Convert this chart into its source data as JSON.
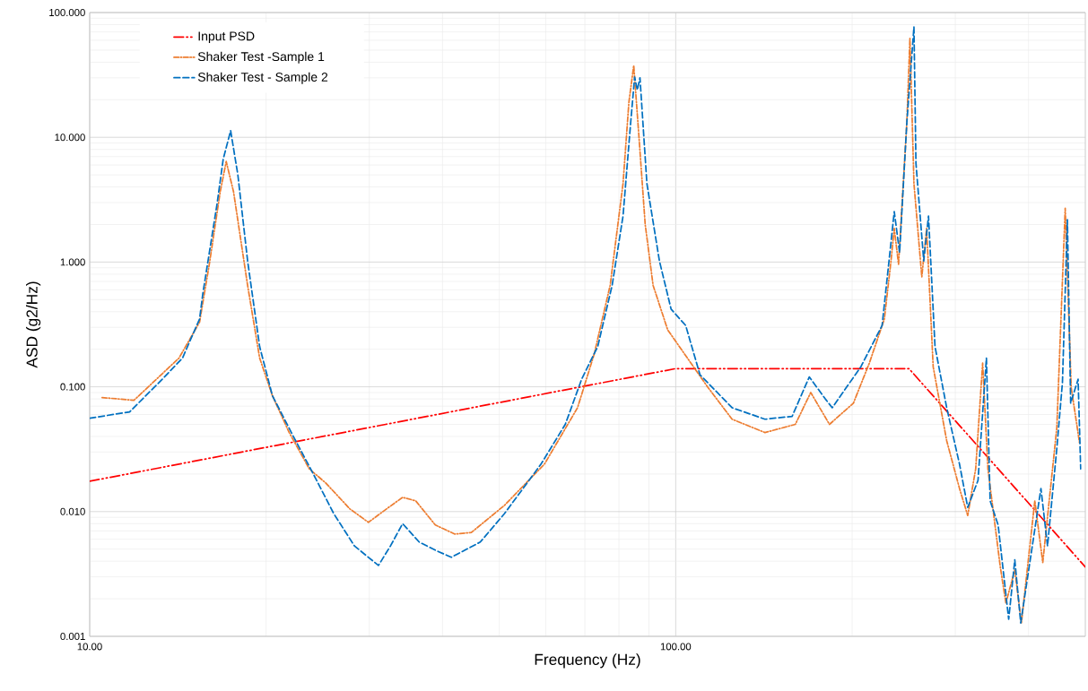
{
  "chart_data": {
    "type": "line",
    "xlabel": "Frequency (Hz)",
    "ylabel": "ASD  (g2/Hz)",
    "log": "xy",
    "grid": true,
    "legend": "top left",
    "marker": "none",
    "xlim": [
      10,
      500
    ],
    "ylim": [
      0.001,
      100
    ],
    "xticks": [
      {
        "value": 10,
        "label": "10.00"
      },
      {
        "value": 100,
        "label": "100.00"
      }
    ],
    "yticks": [
      {
        "value": 0.001,
        "label": "0.001"
      },
      {
        "value": 0.01,
        "label": "0.010"
      },
      {
        "value": 0.1,
        "label": "0.100"
      },
      {
        "value": 1,
        "label": "1.000"
      },
      {
        "value": 10,
        "label": "10.000"
      },
      {
        "value": 100,
        "label": "100.000"
      }
    ],
    "series": [
      {
        "name": "Input PSD",
        "color": "#ff0000",
        "line_style": "dashdotdotted",
        "x": [
          10,
          100,
          250,
          500
        ],
        "values": [
          0.0175,
          0.14,
          0.14,
          0.0036
        ]
      },
      {
        "name": "Shaker Test -Sample 1",
        "color": "#ed7d31",
        "line_style": "dashdotted",
        "x": [
          10.5,
          11.9,
          14.2,
          15.4,
          16.0,
          16.7,
          17.1,
          17.6,
          18.6,
          19.5,
          20.5,
          21.9,
          23.7,
          25.3,
          27.8,
          29.9,
          32.1,
          34.2,
          36.0,
          38.9,
          42,
          44.8,
          51,
          59.7,
          68,
          72.6,
          77.3,
          81.3,
          83.2,
          84.8,
          86.5,
          88.7,
          91.5,
          96.9,
          104.7,
          113.5,
          124.8,
          142,
          160,
          170,
          183,
          201,
          214,
          227,
          233,
          236,
          240,
          248,
          251,
          255,
          263,
          268,
          275,
          290,
          305,
          315,
          325,
          334,
          341,
          358,
          366,
          379,
          389,
          410,
          423,
          447,
          462,
          473,
          489
        ],
        "values": [
          0.082,
          0.078,
          0.17,
          0.33,
          0.96,
          3.66,
          6.4,
          3.66,
          0.65,
          0.17,
          0.085,
          0.043,
          0.022,
          0.0169,
          0.0105,
          0.0082,
          0.0105,
          0.013,
          0.0122,
          0.0078,
          0.0066,
          0.0068,
          0.0112,
          0.024,
          0.068,
          0.183,
          0.65,
          4.25,
          19.1,
          37.7,
          10.5,
          2.0,
          0.65,
          0.286,
          0.17,
          0.099,
          0.055,
          0.043,
          0.05,
          0.09,
          0.05,
          0.074,
          0.155,
          0.35,
          1.02,
          1.86,
          0.96,
          13.3,
          62,
          4.25,
          0.76,
          1.86,
          0.145,
          0.037,
          0.0153,
          0.0093,
          0.022,
          0.155,
          0.022,
          0.0036,
          0.00185,
          0.0034,
          0.00128,
          0.0122,
          0.0039,
          0.047,
          2.7,
          0.099,
          0.035
        ]
      },
      {
        "name": "Shaker Test - Sample 2",
        "color": "#0070c0",
        "line_style": "dashed",
        "x": [
          10,
          11.7,
          13.3,
          14.4,
          15.4,
          15.6,
          16.5,
          16.9,
          17.4,
          17.9,
          18.6,
          19.5,
          20.5,
          22.2,
          24.0,
          26.1,
          28.3,
          31.1,
          32.6,
          34.2,
          36.5,
          38.9,
          41.4,
          46.4,
          51,
          58.9,
          64.8,
          69.1,
          73.6,
          77.9,
          81.3,
          83.8,
          85.1,
          86.0,
          86.9,
          89.3,
          93.8,
          98.2,
          104,
          110,
          124.8,
          142,
          158,
          169,
          180,
          185,
          207,
          225,
          232,
          236,
          241,
          248,
          255,
          257,
          265,
          270,
          277,
          290,
          305,
          315,
          328,
          339,
          344,
          355,
          370,
          379,
          388,
          420,
          431,
          447,
          457,
          466,
          472,
          486,
          491
        ],
        "values": [
          0.056,
          0.063,
          0.115,
          0.17,
          0.35,
          0.56,
          2.95,
          6.7,
          11.3,
          5.0,
          1.02,
          0.21,
          0.085,
          0.041,
          0.0206,
          0.0096,
          0.0053,
          0.0037,
          0.0053,
          0.008,
          0.0057,
          0.0049,
          0.0043,
          0.0057,
          0.0096,
          0.024,
          0.05,
          0.115,
          0.21,
          0.65,
          2.34,
          13.3,
          30.4,
          24,
          30,
          4.25,
          1.02,
          0.42,
          0.31,
          0.125,
          0.068,
          0.055,
          0.058,
          0.12,
          0.08,
          0.068,
          0.145,
          0.31,
          1.19,
          2.54,
          1.19,
          13.3,
          76.8,
          6.2,
          1.02,
          2.34,
          0.21,
          0.068,
          0.024,
          0.0108,
          0.0178,
          0.17,
          0.0122,
          0.0078,
          0.00137,
          0.0041,
          0.00128,
          0.0153,
          0.0053,
          0.032,
          0.108,
          2.19,
          0.074,
          0.115,
          0.022
        ]
      }
    ]
  }
}
